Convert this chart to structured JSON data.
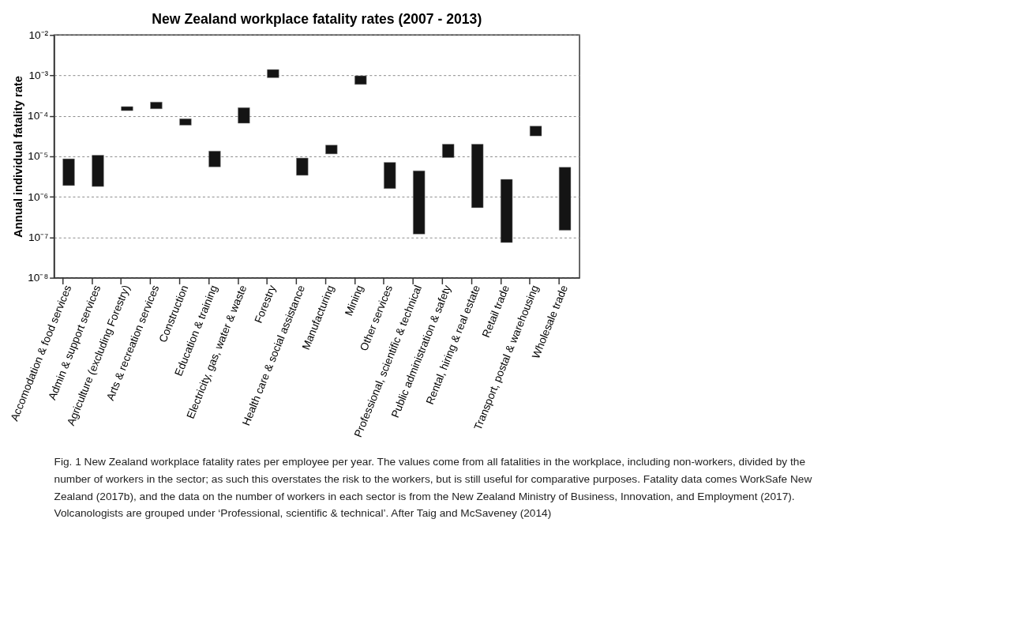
{
  "chart_data": {
    "type": "bar",
    "title": "New Zealand workplace fatality rates (2007 - 2013)",
    "ylabel": "Annual individual fatality rate",
    "categories": [
      "Accomodation & food services",
      "Admin & support services",
      "Agriculture (excluding Forestry)",
      "Arts & recreation services",
      "Construction",
      "Education & training",
      "Electricity, gas, water & waste",
      "Forestry",
      "Health care & social assistance",
      "Manufacturing",
      "Mining",
      "Other services",
      "Professional, scientific & technical",
      "Public administration & safety",
      "Rental, hiring & real estate",
      "Retail trade",
      "Transport, postal & warehousing",
      "Wholesale trade"
    ],
    "base": [
      1.9e-06,
      1.8e-06,
      0.000135,
      0.00015,
      5.9e-05,
      5.5e-06,
      6.6e-05,
      0.00088,
      3.4e-06,
      1.15e-05,
      0.0006,
      1.6e-06,
      1.2e-07,
      9.3e-06,
      5.4e-07,
      7.4e-08,
      3.2e-05,
      1.5e-07
    ],
    "values": [
      6.8e-06,
      8.9e-06,
      3.5e-05,
      7e-05,
      2.6e-05,
      8e-06,
      9.4e-05,
      0.00052,
      5.7e-06,
      7.5e-06,
      0.00038,
      5.5e-06,
      4.28e-06,
      1.07e-05,
      1.946e-05,
      2.626e-06,
      2.4e-05,
      5.25e-06
    ],
    "color": "#141414",
    "log": true,
    "grid": "y",
    "ylim": [
      1e-08,
      0.01
    ],
    "yticks": [
      {
        "value": 1e-08,
        "label": "10⁻⁸"
      },
      {
        "value": 1e-07,
        "label": "10⁻⁷"
      },
      {
        "value": 1e-06,
        "label": "10⁻⁶"
      },
      {
        "value": 1e-05,
        "label": "10⁻⁵"
      },
      {
        "value": 0.0001,
        "label": "10⁻⁴"
      },
      {
        "value": 0.001,
        "label": "10⁻³"
      },
      {
        "value": 0.01,
        "label": "10⁻²"
      }
    ],
    "annotations": [
      "Fig. 1 New Zealand workplace fatality rates per employee per year. The values come from all fatalities in the workplace, including non-workers, divided by the number of workers in the sector; as such this overstates the risk to the workers, but is still useful for comparative purposes. Fatality data comes WorkSafe New Zealand (2017b), and the data on the number of workers in each sector is from the New Zealand Ministry of Business, Innovation, and Employment (2017). Volcanologists are grouped under ‘Professional, scientific & technical’. After Taig and McSaveney (2014)"
    ]
  }
}
